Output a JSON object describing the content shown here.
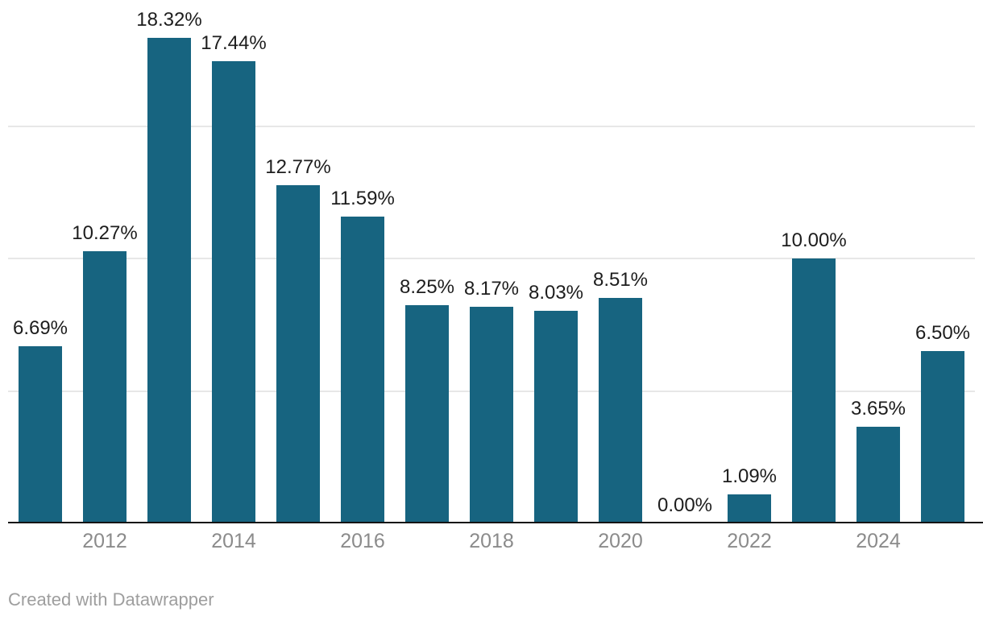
{
  "chart_data": {
    "type": "bar",
    "title": "",
    "xlabel": "",
    "ylabel": "",
    "categories": [
      "2011",
      "2012",
      "2013",
      "2014",
      "2015",
      "2016",
      "2017",
      "2018",
      "2019",
      "2020",
      "2021",
      "2022",
      "2023",
      "2024",
      "2025"
    ],
    "values": [
      6.69,
      10.27,
      18.32,
      17.44,
      12.77,
      11.59,
      8.25,
      8.17,
      8.03,
      8.51,
      0.0,
      1.09,
      10.0,
      3.65,
      6.5
    ],
    "bar_labels": [
      "6.69%",
      "10.27%",
      "18.32%",
      "17.44%",
      "12.77%",
      "11.59%",
      "8.25%",
      "8.17%",
      "8.03%",
      "8.51%",
      "0.00%",
      "1.09%",
      "10.00%",
      "3.65%",
      "6.50%"
    ],
    "x_axis_ticks": [
      {
        "index": 1,
        "label": "2012"
      },
      {
        "index": 3,
        "label": "2014"
      },
      {
        "index": 5,
        "label": "2016"
      },
      {
        "index": 7,
        "label": "2018"
      },
      {
        "index": 9,
        "label": "2020"
      },
      {
        "index": 11,
        "label": "2022"
      },
      {
        "index": 13,
        "label": "2024"
      }
    ],
    "ylim": [
      0,
      19.75
    ],
    "gridlines_y": [
      5,
      10,
      15
    ],
    "grid": "horizontal",
    "legend": "none",
    "colors": {
      "bar": "#176480",
      "grid": "#e7e7e7",
      "axis": "#141414",
      "value_label": "#1d1d1d",
      "tick_label": "#8b8b8b",
      "credit": "#9e9e9e"
    }
  },
  "footer": {
    "credit": "Created with Datawrapper"
  }
}
